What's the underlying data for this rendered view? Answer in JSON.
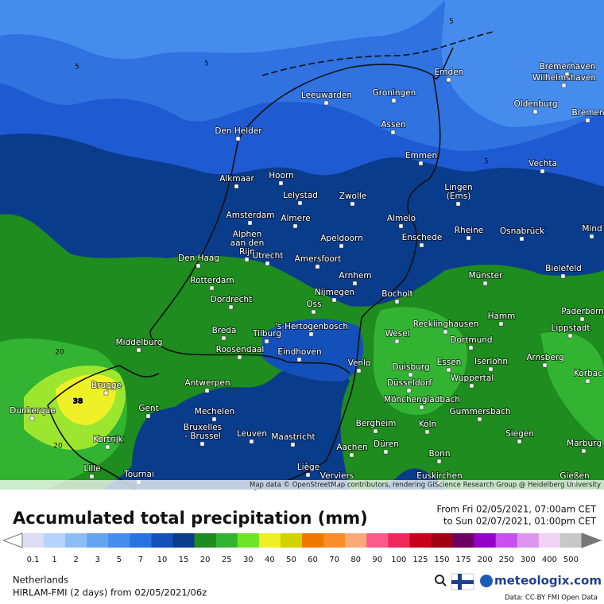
{
  "map": {
    "cities": [
      {
        "lines": [
          "Bremerhaven"
        ]
      },
      {
        "lines": [
          "Wilhelmshaven"
        ]
      },
      {
        "lines": [
          "Emden"
        ]
      },
      {
        "lines": [
          "Groningen"
        ]
      },
      {
        "lines": [
          "Leeuwarden"
        ]
      },
      {
        "lines": [
          "Oldenburg"
        ]
      },
      {
        "lines": [
          "Bremen"
        ]
      },
      {
        "lines": [
          "Den Helder"
        ]
      },
      {
        "lines": [
          "Assen"
        ]
      },
      {
        "lines": [
          "Emmen"
        ]
      },
      {
        "lines": [
          "Vechta"
        ]
      },
      {
        "lines": [
          "Hoorn"
        ]
      },
      {
        "lines": [
          "Alkmaar"
        ]
      },
      {
        "lines": [
          "Lingen",
          "(Ems)"
        ]
      },
      {
        "lines": [
          "Lelystad"
        ]
      },
      {
        "lines": [
          "Zwolle"
        ]
      },
      {
        "lines": [
          "Amsterdam"
        ]
      },
      {
        "lines": [
          "Almere"
        ]
      },
      {
        "lines": [
          "Almelo"
        ]
      },
      {
        "lines": [
          "Rheine"
        ]
      },
      {
        "lines": [
          "Osnabrück"
        ]
      },
      {
        "lines": [
          "Mind"
        ]
      },
      {
        "lines": [
          "Enschede"
        ]
      },
      {
        "lines": [
          "Apeldoorn"
        ]
      },
      {
        "lines": [
          "Alphen",
          "aan den",
          "Rijn"
        ]
      },
      {
        "lines": [
          "Den Haag"
        ]
      },
      {
        "lines": [
          "Utrecht"
        ]
      },
      {
        "lines": [
          "Amersfoort"
        ]
      },
      {
        "lines": [
          "Bielefeld"
        ]
      },
      {
        "lines": [
          "Arnhem"
        ]
      },
      {
        "lines": [
          "Münster"
        ]
      },
      {
        "lines": [
          "Rotterdam"
        ]
      },
      {
        "lines": [
          "Nijmegen"
        ]
      },
      {
        "lines": [
          "Bocholt"
        ]
      },
      {
        "lines": [
          "Dordrecht"
        ]
      },
      {
        "lines": [
          "Oss"
        ]
      },
      {
        "lines": [
          "Paderborn"
        ]
      },
      {
        "lines": [
          "Hamm"
        ]
      },
      {
        "lines": [
          "Recklinghausen"
        ]
      },
      {
        "lines": [
          "Breda"
        ]
      },
      {
        "lines": [
          "Tilburg"
        ]
      },
      {
        "lines": [
          "'s-Hertogenbosch"
        ]
      },
      {
        "lines": [
          "Lippstadt"
        ]
      },
      {
        "lines": [
          "Wesel"
        ]
      },
      {
        "lines": [
          "Dortmund"
        ]
      },
      {
        "lines": [
          "Middelburg"
        ]
      },
      {
        "lines": [
          "Roosendaal"
        ]
      },
      {
        "lines": [
          "Eindhoven"
        ]
      },
      {
        "lines": [
          "Arnsberg"
        ]
      },
      {
        "lines": [
          "Korbac"
        ]
      },
      {
        "lines": [
          "Venlo"
        ]
      },
      {
        "lines": [
          "Essen"
        ]
      },
      {
        "lines": [
          "Iserlohn"
        ]
      },
      {
        "lines": [
          "Duisburg"
        ]
      },
      {
        "lines": [
          "Wuppertal"
        ]
      },
      {
        "lines": [
          "Antwerpen"
        ]
      },
      {
        "lines": [
          "Brugge"
        ]
      },
      {
        "lines": [
          "Düsseldorf"
        ]
      },
      {
        "lines": [
          "Mönchengladbach"
        ]
      },
      {
        "lines": [
          "Dunkerque"
        ]
      },
      {
        "lines": [
          "Gent"
        ]
      },
      {
        "lines": [
          "Mechelen"
        ]
      },
      {
        "lines": [
          "Gummersbach"
        ]
      },
      {
        "lines": [
          "Bergheim"
        ]
      },
      {
        "lines": [
          "Köln"
        ]
      },
      {
        "lines": [
          "Bruxelles",
          "- Brussel"
        ]
      },
      {
        "lines": [
          "Leuven"
        ]
      },
      {
        "lines": [
          "Maastricht"
        ]
      },
      {
        "lines": [
          "Siegen"
        ]
      },
      {
        "lines": [
          "Kortrijk"
        ]
      },
      {
        "lines": [
          "Düren"
        ]
      },
      {
        "lines": [
          "Marburg"
        ]
      },
      {
        "lines": [
          "Aachen"
        ]
      },
      {
        "lines": [
          "Bonn"
        ]
      },
      {
        "lines": [
          "Liège"
        ]
      },
      {
        "lines": [
          "Lille"
        ]
      },
      {
        "lines": [
          "Tournai"
        ]
      },
      {
        "lines": [
          "Euskirchen"
        ]
      },
      {
        "lines": [
          "Verviers"
        ]
      },
      {
        "lines": [
          "Gießen"
        ]
      }
    ],
    "contour_labels": [
      "5",
      "5",
      "5",
      "5",
      "20",
      "20",
      "38"
    ],
    "attribution": "Map data © OpenStreetMap contributors, rendering GIScience Research Group @ Heidelberg University"
  },
  "header": {
    "title": "Accumulated total precipitation (mm)",
    "period_from": "From Fri 02/05/2021, 07:00am CET",
    "period_to": "to Sun 02/07/2021, 01:00pm CET"
  },
  "colorbar": [
    {
      "label": "0.1",
      "color": "#dcdcf5"
    },
    {
      "label": "1",
      "color": "#b4d2fa"
    },
    {
      "label": "2",
      "color": "#8cbef5"
    },
    {
      "label": "3",
      "color": "#64a5f0"
    },
    {
      "label": "5",
      "color": "#468cec"
    },
    {
      "label": "7",
      "color": "#2873e1"
    },
    {
      "label": "10",
      "color": "#1450b9"
    },
    {
      "label": "15",
      "color": "#0a3c8c"
    },
    {
      "label": "20",
      "color": "#1e8c1e"
    },
    {
      "label": "25",
      "color": "#32b432"
    },
    {
      "label": "30",
      "color": "#6ee628"
    },
    {
      "label": "40",
      "color": "#f0f028"
    },
    {
      "label": "50",
      "color": "#d2d200"
    },
    {
      "label": "60",
      "color": "#f07800"
    },
    {
      "label": "70",
      "color": "#fa8c28"
    },
    {
      "label": "80",
      "color": "#faaa78"
    },
    {
      "label": "90",
      "color": "#fa5a8c"
    },
    {
      "label": "100",
      "color": "#f0285a"
    },
    {
      "label": "125",
      "color": "#c8001e"
    },
    {
      "label": "150",
      "color": "#a00014"
    },
    {
      "label": "175",
      "color": "#6e0064"
    },
    {
      "label": "200",
      "color": "#9600c8"
    },
    {
      "label": "250",
      "color": "#c850f0"
    },
    {
      "label": "300",
      "color": "#dc96f0"
    },
    {
      "label": "400",
      "color": "#f0d2f5"
    },
    {
      "label": "500",
      "color": "#c8c8c8"
    }
  ],
  "footer": {
    "region": "Netherlands",
    "model": "HIRLAM-FMI (2 days) from 02/05/2021/06z",
    "brand": "meteologix.com",
    "credit": "Data: CC-BY FMI Open Data"
  }
}
